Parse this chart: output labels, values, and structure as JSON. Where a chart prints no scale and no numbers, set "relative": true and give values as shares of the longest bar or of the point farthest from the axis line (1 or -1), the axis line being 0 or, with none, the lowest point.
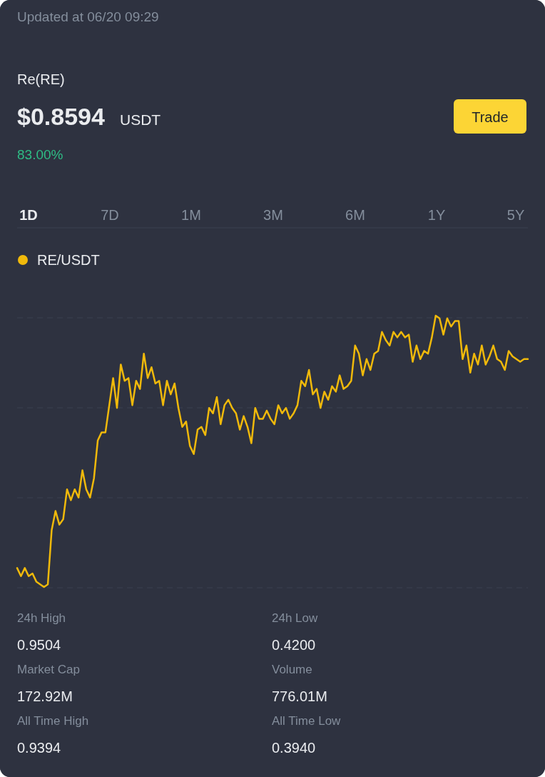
{
  "chart_data": {
    "type": "line",
    "title": "Re(RE)",
    "subtitle": "Updated at 06/20 09:29",
    "annotations": [
      "$0.8594",
      "USDT",
      "83.00%",
      "Trade",
      "1D",
      "7D",
      "1M",
      "3M",
      "6M",
      "1Y",
      "5Y",
      "24h High",
      "0.9504",
      "24h Low",
      "0.4200",
      "Market Cap",
      "172.92M",
      "Volume",
      "776.01M",
      "All Time High",
      "0.9394",
      "All Time Low",
      "0.3940"
    ],
    "relative": true,
    "grid": true,
    "legend": "top left",
    "categories": [
      null,
      null,
      null,
      null,
      null,
      null,
      null,
      null,
      null,
      null,
      null,
      null,
      null,
      null,
      null,
      null,
      null,
      null,
      null,
      null,
      null,
      null,
      null,
      null,
      null,
      null,
      null,
      null,
      null,
      null,
      null,
      null,
      null,
      null,
      null,
      null,
      null,
      null,
      null,
      null,
      null,
      null,
      null,
      null,
      null,
      null,
      null,
      null,
      null,
      null,
      null,
      null,
      null,
      null,
      null,
      null,
      null,
      null,
      null,
      null,
      null,
      null,
      null,
      null,
      null,
      null,
      null,
      null,
      null,
      null,
      null,
      null,
      null,
      null,
      null,
      null,
      null,
      null,
      null,
      null,
      null,
      null,
      null,
      null,
      null,
      null,
      null,
      null,
      null,
      null,
      null,
      null,
      null,
      null,
      null,
      null,
      null,
      null,
      null,
      null,
      null,
      null,
      null,
      null,
      null,
      null,
      null,
      null,
      null,
      null,
      null,
      null,
      null,
      null,
      null,
      null,
      null,
      null,
      null,
      null,
      null,
      null,
      null,
      null,
      null,
      null,
      null,
      null,
      null,
      null,
      null,
      null,
      null,
      null
    ],
    "series": [
      {
        "name": "RE/USDT",
        "color": "#f0b90b",
        "values": [
          0.07,
          0.04,
          0.07,
          0.04,
          0.05,
          0.02,
          0.01,
          0,
          0.01,
          0.21,
          0.28,
          0.23,
          0.25,
          0.36,
          0.32,
          0.36,
          0.33,
          0.43,
          0.36,
          0.33,
          0.4,
          0.54,
          0.57,
          0.57,
          0.67,
          0.77,
          0.66,
          0.82,
          0.76,
          0.77,
          0.67,
          0.76,
          0.73,
          0.86,
          0.77,
          0.81,
          0.75,
          0.76,
          0.67,
          0.76,
          0.71,
          0.75,
          0.66,
          0.59,
          0.61,
          0.52,
          0.49,
          0.58,
          0.59,
          0.56,
          0.66,
          0.64,
          0.7,
          0.6,
          0.67,
          0.69,
          0.66,
          0.64,
          0.58,
          0.63,
          0.59,
          0.53,
          0.66,
          0.62,
          0.62,
          0.65,
          0.62,
          0.6,
          0.67,
          0.64,
          0.66,
          0.62,
          0.64,
          0.67,
          0.76,
          0.74,
          0.8,
          0.71,
          0.73,
          0.66,
          0.72,
          0.69,
          0.74,
          0.72,
          0.78,
          0.73,
          0.74,
          0.76,
          0.89,
          0.86,
          0.78,
          0.84,
          0.8,
          0.86,
          0.87,
          0.94,
          0.91,
          0.89,
          0.94,
          0.92,
          0.94,
          0.92,
          0.93,
          0.83,
          0.89,
          0.84,
          0.87,
          0.86,
          0.92,
          1,
          0.99,
          0.93,
          0.99,
          0.96,
          0.98,
          0.98,
          0.84,
          0.89,
          0.79,
          0.86,
          0.82,
          0.89,
          0.82,
          0.85,
          0.89,
          0.84,
          0.83,
          0.8,
          0.87,
          0.85,
          0.84,
          0.83,
          0.84,
          0.84
        ]
      }
    ]
  }
}
